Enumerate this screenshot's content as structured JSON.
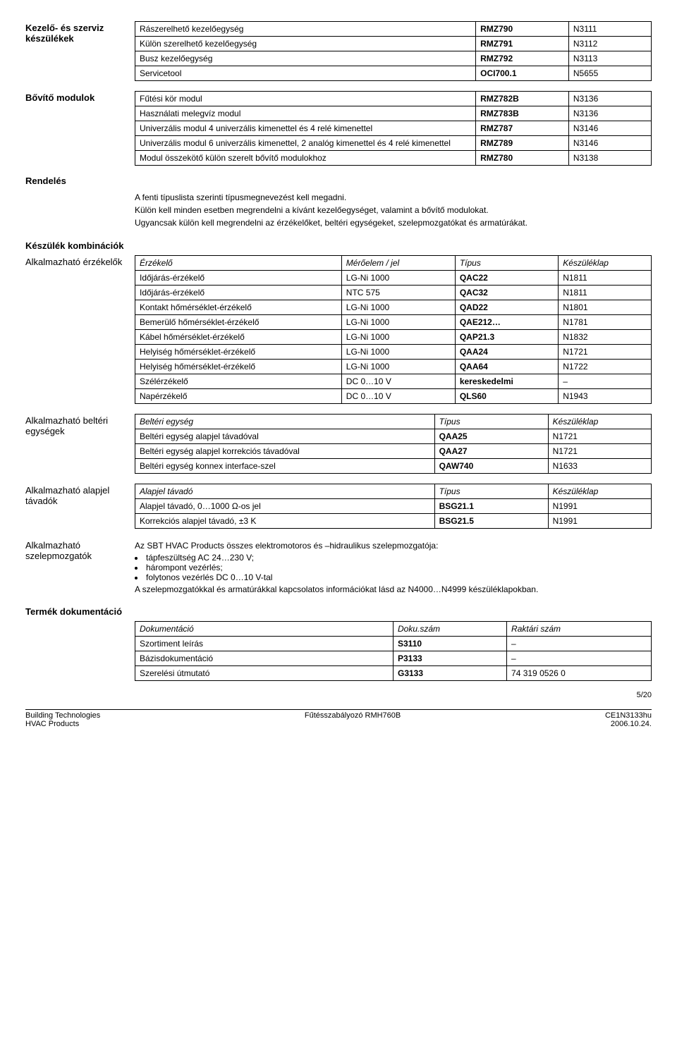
{
  "section1": {
    "label": "Kezelő- és szerviz készülékek",
    "rows": [
      [
        "Rászerelhető kezelőegység",
        "RMZ790",
        "N3111"
      ],
      [
        "Külön szerelhető kezelőegység",
        "RMZ791",
        "N3112"
      ],
      [
        "Busz kezelőegység",
        "RMZ792",
        "N3113"
      ],
      [
        "Servicetool",
        "OCI700.1",
        "N5655"
      ]
    ]
  },
  "section2": {
    "label": "Bővítő modulok",
    "rows": [
      [
        "Fűtési kör modul",
        "RMZ782B",
        "N3136"
      ],
      [
        "Használati melegvíz modul",
        "RMZ783B",
        "N3136"
      ],
      [
        "Univerzális modul 4 univerzális kimenettel és 4 relé kimenettel",
        "RMZ787",
        "N3146"
      ],
      [
        "Univerzális modul 6 univerzális kimenettel, 2 analóg kimenettel és 4 relé kimenettel",
        "RMZ789",
        "N3146"
      ],
      [
        "Modul összekötő külön szerelt bővítő modulokhoz",
        "RMZ780",
        "N3138"
      ]
    ]
  },
  "rendeles": {
    "label": "Rendelés",
    "p1": "A fenti típuslista szerinti típusmegnevezést kell megadni.",
    "p2": "Külön kell minden esetben megrendelni a kívánt kezelőegységet, valamint a bővítő modulokat.",
    "p3": "Ugyancsak külön kell megrendelni az érzékelőket, beltéri egységeket, szelepmozgatókat és armatúrákat."
  },
  "kombinaciok_label": "Készülék kombinációk",
  "sensors": {
    "label": "Alkalmazható érzékelők",
    "headers": [
      "Érzékelő",
      "Mérőelem / jel",
      "Típus",
      "Készüléklap"
    ],
    "rows": [
      [
        "Időjárás-érzékelő",
        "LG-Ni 1000",
        "QAC22",
        "N1811"
      ],
      [
        "Időjárás-érzékelő",
        "NTC 575",
        "QAC32",
        "N1811"
      ],
      [
        "Kontakt hőmérséklet-érzékelő",
        "LG-Ni 1000",
        "QAD22",
        "N1801"
      ],
      [
        "Bemerülő hőmérséklet-érzékelő",
        "LG-Ni 1000",
        "QAE212…",
        "N1781"
      ],
      [
        "Kábel hőmérséklet-érzékelő",
        "LG-Ni 1000",
        "QAP21.3",
        "N1832"
      ],
      [
        "Helyiség hőmérséklet-érzékelő",
        "LG-Ni 1000",
        "QAA24",
        "N1721"
      ],
      [
        "Helyiség hőmérséklet-érzékelő",
        "LG-Ni 1000",
        "QAA64",
        "N1722"
      ],
      [
        "Szélérzékelő",
        "DC 0…10 V",
        "kereskedelmi",
        "–"
      ],
      [
        "Napérzékelő",
        "DC 0…10 V",
        "QLS60",
        "N1943"
      ]
    ]
  },
  "indoor": {
    "label": "Alkalmazható beltéri egységek",
    "headers": [
      "Beltéri egység",
      "Típus",
      "Készüléklap"
    ],
    "rows": [
      [
        "Beltéri egység alapjel távadóval",
        "QAA25",
        "N1721"
      ],
      [
        "Beltéri egység alapjel korrekciós távadóval",
        "QAA27",
        "N1721"
      ],
      [
        "Beltéri egység konnex interface-szel",
        "QAW740",
        "N1633"
      ]
    ]
  },
  "setpoint": {
    "label": "Alkalmazható alapjel távadók",
    "headers": [
      "Alapjel távadó",
      "Típus",
      "Készüléklap"
    ],
    "rows": [
      [
        "Alapjel távadó, 0…1000 Ω-os jel",
        "BSG21.1",
        "N1991"
      ],
      [
        "Korrekciós alapjel távadó, ±3 K",
        "BSG21.5",
        "N1991"
      ]
    ]
  },
  "actuators": {
    "label": "Alkalmazható szelepmozgatók",
    "intro": "Az SBT HVAC Products összes elektromotoros és –hidraulikus szelepmozgatója:",
    "bullets": [
      "tápfeszültség AC 24…230 V;",
      "hárompont vezérlés;",
      "folytonos vezérlés DC 0…10 V-tal"
    ],
    "outro": "A szelepmozgatókkal és armatúrákkal kapcsolatos információkat lásd az N4000…N4999 készüléklapokban."
  },
  "doc": {
    "label": "Termék dokumentáció",
    "headers": [
      "Dokumentáció",
      "Doku.szám",
      "Raktári szám"
    ],
    "rows": [
      [
        "Szortiment leírás",
        "S3110",
        "–"
      ],
      [
        "Bázisdokumentáció",
        "P3133",
        "–"
      ],
      [
        "Szerelési útmutató",
        "G3133",
        "74 319 0526 0"
      ]
    ]
  },
  "footer": {
    "left1": "Building Technologies",
    "left2": "HVAC Products",
    "center": "Fűtésszabályozó RMH760B",
    "right1": "CE1N3133hu",
    "right2": "2006.10.24.",
    "page": "5/20"
  },
  "colwidths": {
    "three": [
      "66%",
      "18%",
      "16%"
    ],
    "four": [
      "40%",
      "22%",
      "20%",
      "18%"
    ],
    "threeShort": [
      "58%",
      "22%",
      "20%"
    ]
  }
}
